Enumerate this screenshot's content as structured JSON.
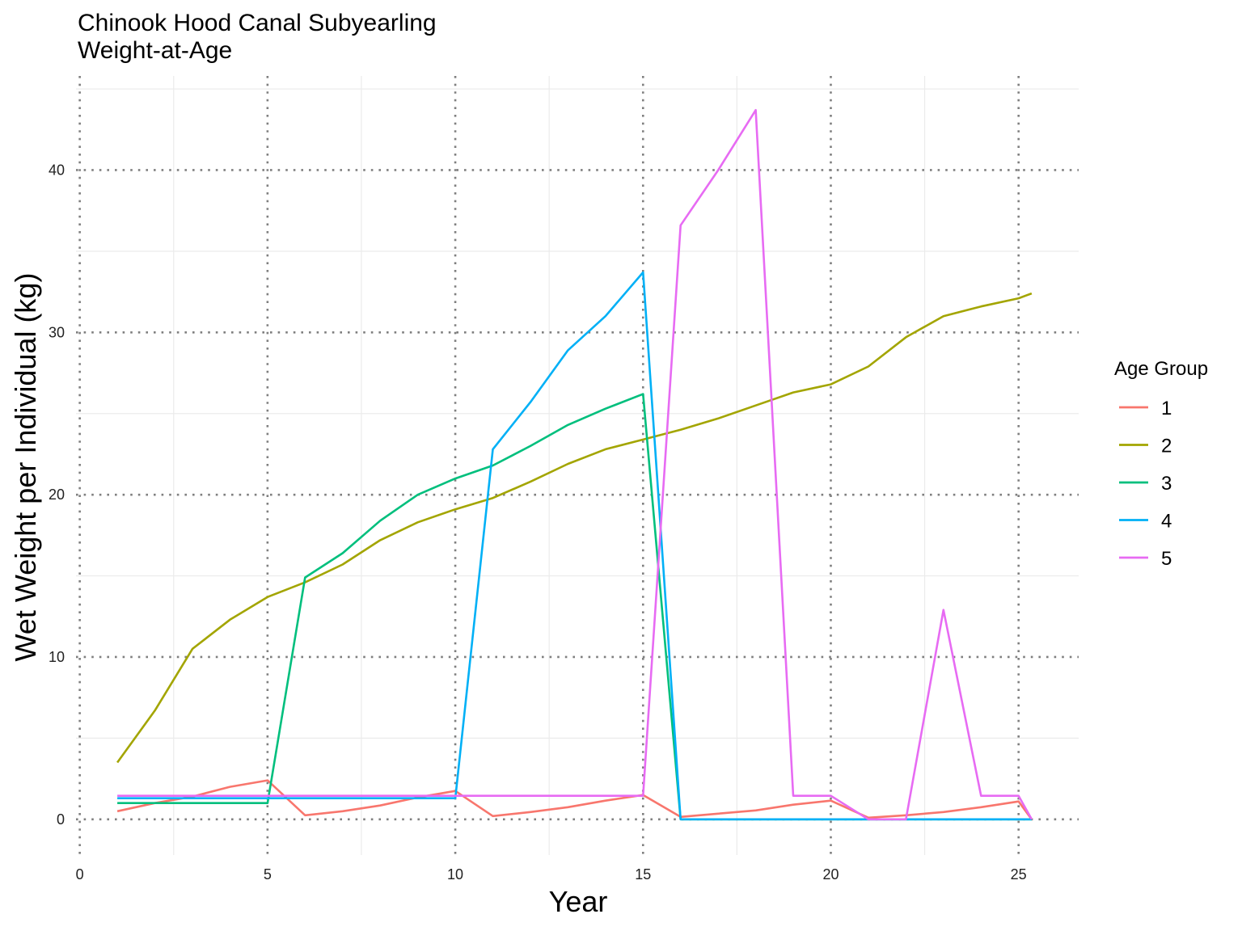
{
  "chart_data": {
    "type": "line",
    "title": "Chinook Hood Canal Subyearling",
    "subtitle": "Weight-at-Age",
    "xlabel": "Year",
    "ylabel": "Wet Weight per Individual (kg)",
    "xlim": [
      -0.1,
      26.6
    ],
    "ylim": [
      -2.2,
      45.8
    ],
    "x_ticks": [
      0,
      5,
      10,
      15,
      20,
      25
    ],
    "y_ticks": [
      0,
      10,
      20,
      30,
      40
    ],
    "grid": true,
    "legend": {
      "title": "Age Group",
      "position": "right"
    },
    "series": [
      {
        "name": "1",
        "color": "#F8766D",
        "x": [
          1,
          2,
          3,
          4,
          5,
          6,
          7,
          8,
          9,
          10,
          11,
          12,
          13,
          14,
          15,
          16,
          17,
          18,
          19,
          20,
          21,
          22,
          23,
          24,
          25,
          25.35
        ],
        "y": [
          0.5,
          1.0,
          1.4,
          2.0,
          2.4,
          0.25,
          0.5,
          0.85,
          1.35,
          1.75,
          0.2,
          0.45,
          0.75,
          1.15,
          1.5,
          0.15,
          0.35,
          0.55,
          0.9,
          1.15,
          0.1,
          0.25,
          0.45,
          0.75,
          1.1,
          0.0
        ]
      },
      {
        "name": "2",
        "color": "#A3A500",
        "x": [
          1,
          2,
          3,
          4,
          5,
          6,
          7,
          8,
          9,
          10,
          11,
          12,
          13,
          14,
          15,
          16,
          17,
          18,
          19,
          20,
          21,
          22,
          23,
          24,
          25,
          25.35
        ],
        "y": [
          3.5,
          6.7,
          10.5,
          12.3,
          13.7,
          14.6,
          15.7,
          17.2,
          18.3,
          19.1,
          19.8,
          20.8,
          21.9,
          22.8,
          23.4,
          24.0,
          24.7,
          25.5,
          26.3,
          26.8,
          27.9,
          29.7,
          31.0,
          31.6,
          32.1,
          32.4
        ]
      },
      {
        "name": "3",
        "color": "#00BF7D",
        "x": [
          1,
          2,
          3,
          4,
          5,
          6,
          7,
          8,
          9,
          10,
          11,
          12,
          13,
          14,
          15,
          16,
          17,
          18,
          19,
          20,
          21,
          22,
          23,
          24,
          25,
          25.35
        ],
        "y": [
          1.0,
          1.0,
          1.0,
          1.0,
          1.0,
          14.9,
          16.4,
          18.4,
          20.0,
          21.0,
          21.8,
          23.0,
          24.3,
          25.3,
          26.2,
          0.0,
          0.0,
          0.0,
          0.0,
          0.0,
          0.0,
          0.0,
          0.0,
          0.0,
          0.0,
          0.0
        ]
      },
      {
        "name": "4",
        "color": "#00B0F6",
        "x": [
          1,
          2,
          3,
          4,
          5,
          6,
          7,
          8,
          9,
          10,
          11,
          12,
          13,
          14,
          15,
          16,
          17,
          18,
          19,
          20,
          21,
          22,
          23,
          24,
          25,
          25.35
        ],
        "y": [
          1.3,
          1.3,
          1.3,
          1.3,
          1.3,
          1.3,
          1.3,
          1.3,
          1.3,
          1.3,
          22.8,
          25.7,
          28.9,
          31.0,
          33.7,
          0.0,
          0.0,
          0.0,
          0.0,
          0.0,
          0.0,
          0.0,
          0.0,
          0.0,
          0.0,
          0.0
        ]
      },
      {
        "name": "5",
        "color": "#E76BF3",
        "x": [
          1,
          2,
          3,
          4,
          5,
          6,
          7,
          8,
          9,
          10,
          11,
          12,
          13,
          14,
          15,
          16,
          17,
          18,
          19,
          20,
          21,
          22,
          23,
          24,
          25,
          25.35
        ],
        "y": [
          1.45,
          1.45,
          1.45,
          1.45,
          1.45,
          1.45,
          1.45,
          1.45,
          1.45,
          1.45,
          1.45,
          1.45,
          1.45,
          1.45,
          1.45,
          36.6,
          40.0,
          43.7,
          1.45,
          1.45,
          0.0,
          0.0,
          12.9,
          1.45,
          1.45,
          0.0
        ]
      }
    ]
  }
}
